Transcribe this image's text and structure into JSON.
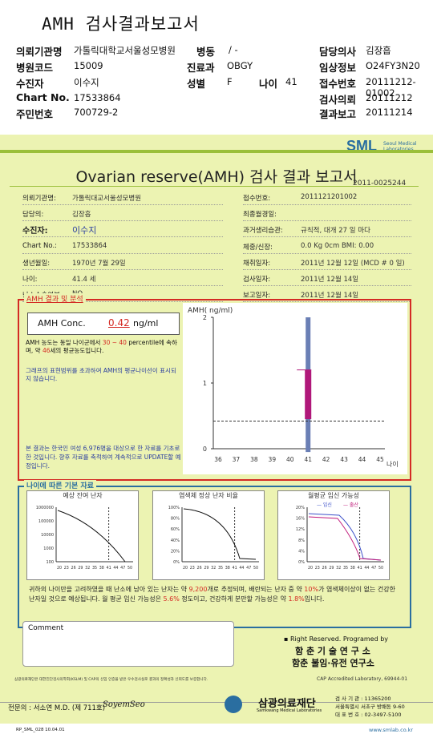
{
  "doc_title": "AMH 검사결과보고서",
  "header": {
    "institution_label": "의뢰기관명",
    "institution_value": "가톨릭대학교서울성모병원",
    "ward_label": "병동",
    "ward_value": "/ -",
    "doctor_label": "담당의사",
    "doctor_value": "김장흡",
    "hospital_code_label": "병원코드",
    "hospital_code_value": "15009",
    "dept_label": "진료과",
    "dept_value": "OBGY",
    "clinical_label": "임상정보",
    "clinical_value": "O24FY3N20",
    "patient_label": "수진자",
    "patient_value": "이수지",
    "sex_label": "성별",
    "sex_value": "F",
    "age_label": "나이",
    "age_value": "41",
    "receipt_label": "접수번호",
    "receipt_value": "20111212-01002",
    "chart_label": "Chart No.",
    "chart_value": "17533864",
    "request_label": "검사의뢰",
    "request_value": "20111212",
    "rrn_label": "주민번호",
    "rrn_value": "700729-2",
    "result_label": "결과보고",
    "result_value": "20111214"
  },
  "report": {
    "logo": "SML",
    "logo_sub": "Seoul Medical Laboratories",
    "title": "Ovarian reserve(AMH) 검사 결과 보고서",
    "report_no": "2011-0025244",
    "left_rows": [
      {
        "label": "의뢰기관명:",
        "value": "가톨릭대교서울성모병원"
      },
      {
        "label": "담당의:",
        "value": "김장흡"
      },
      {
        "label": "수진자:",
        "value": "이수지"
      },
      {
        "label": "Chart No.:",
        "value": "17533864"
      },
      {
        "label": "생년월일:",
        "value": "1970년 7월 29일"
      },
      {
        "label": "나이:",
        "value": "41.4 세"
      },
      {
        "label": "난소수술여부:",
        "value": "NO"
      }
    ],
    "right_rows": [
      {
        "label": "접수번호:",
        "value": "2011121201002"
      },
      {
        "label": "최종월경일:",
        "value": ""
      },
      {
        "label": "과거생리습관:",
        "value": "규칙적,  대개   27  일 마다"
      },
      {
        "label": "체중/신장:",
        "value": "0.0  Kg       0cm    BMI:    0.00"
      },
      {
        "label": "채취일자:",
        "value": "2011년 12월 12일  (MCD #  0 일)"
      },
      {
        "label": "검사일자:",
        "value": "2011년 12월 14일"
      },
      {
        "label": "보고일자:",
        "value": "2011년 12월 14일"
      }
    ]
  },
  "amh_section": {
    "title": "AMH 결과 및 분석",
    "conc_label": "AMH Conc.",
    "conc_value": "0.42",
    "conc_unit": "ng/ml",
    "text1": "AMH 농도는 동일 나이군에서",
    "pct_range": "30 ~ 40",
    "text2": "percentile에 속하며, 약",
    "equiv_age": "46",
    "text3": "세의 평균농도입니다.",
    "text4": "그래프의 표현범위를 초과하여 AMH의 평균나이선이 표시되지 않습니다.",
    "note": "본 결과는 한국인 여성 6,976명을 대상으로 한 자료를 기초로 한 것입니다. 향후 자료를 축적하여 계속적으로 UPDATE할 예정입니다."
  },
  "chart_data": [
    {
      "type": "box",
      "title": "",
      "ylabel": "AMH( ng/ml)",
      "xlabel": "나이",
      "ylim": [
        0,
        2
      ],
      "yticks": [
        "0",
        "1",
        "2"
      ],
      "x": [
        36,
        37,
        38,
        39,
        40,
        41,
        42,
        43,
        44,
        45
      ],
      "box_age": 41,
      "whisker_low": -0.05,
      "whisker_high": 2.0,
      "q1": 0.45,
      "q3": 1.2,
      "patient_value": 0.42,
      "colors": {
        "whisker": "#6a7fb5",
        "box": "#b0187a",
        "line": "#333333"
      }
    },
    {
      "type": "line",
      "title": "예상 잔여 난자",
      "x_ticks": [
        "20",
        "23",
        "26",
        "29",
        "32",
        "35",
        "38",
        "41",
        "44",
        "47",
        "50"
      ],
      "y_ticks": [
        "1000000",
        "100000",
        "10000",
        "1000",
        "100"
      ],
      "log_y": true
    },
    {
      "type": "line",
      "title": "염색체 정상 난자 비율",
      "x_ticks": [
        "20",
        "23",
        "26",
        "29",
        "32",
        "35",
        "38",
        "41",
        "44",
        "47",
        "50"
      ],
      "y_ticks": [
        "100%",
        "80%",
        "60%",
        "40%",
        "20%",
        "0%"
      ]
    },
    {
      "type": "line",
      "title": "월평균 임신 가능성",
      "legend": [
        "임신",
        "출산"
      ],
      "x_ticks": [
        "20",
        "23",
        "26",
        "29",
        "32",
        "35",
        "38",
        "41",
        "44",
        "47",
        "50"
      ],
      "y_ticks": [
        "20%",
        "16%",
        "12%",
        "8%",
        "4%",
        "0%"
      ]
    }
  ],
  "age_section": {
    "title": "나이에 따른 기본 자료",
    "para_a": "귀하의 나이만을 고려하였을 때 난소에 남아 있는 난자는 약",
    "eggs": "9,200",
    "para_b": "개로 추정되며, 배란되는 난자 중 약",
    "pct_abnormal": "10%",
    "para_c": "가 염색체이상이 없는 건강한 난자일 것으로 예상됩니다. 월 평균 임신 가능성은",
    "preg_rate": "5.6%",
    "para_d": "정도이고, 건강하게 분만할 가능성은 약",
    "birth_rate": "1.8%",
    "para_e": "입니다."
  },
  "comment_label": "Comment",
  "rights": {
    "line1": "▪ Right Reserved. Programed by",
    "line2": "함 춘  기 술  연 구 소",
    "line3": "함춘 불임·유전 연구소"
  },
  "footer": {
    "cert": "삼광의료재단은 대한진단검사의학회(KSLM) 및 CAP의 신임 인증을 받은 우수검사실로 결과의 정확성과 신뢰도를 보증합니다.",
    "cap": "CAP  Accredited  Laboratory,  69944-01",
    "doctor": "전문의 : 서소연 M.D. (제 711호)",
    "signature": "SoyemSeo",
    "foundation": "삼광의료재단",
    "foundation_sub": "Samkwang Medical Laboratories",
    "phone1": "검 사 기 관 : 11365200",
    "address": "서울특별시 서초구 방배동 9-60",
    "phone2": "대 표 번 호 : 02-3497-5100",
    "form_code": "RP_SML_028  10.04.01",
    "website": "www.smlab.co.kr"
  }
}
